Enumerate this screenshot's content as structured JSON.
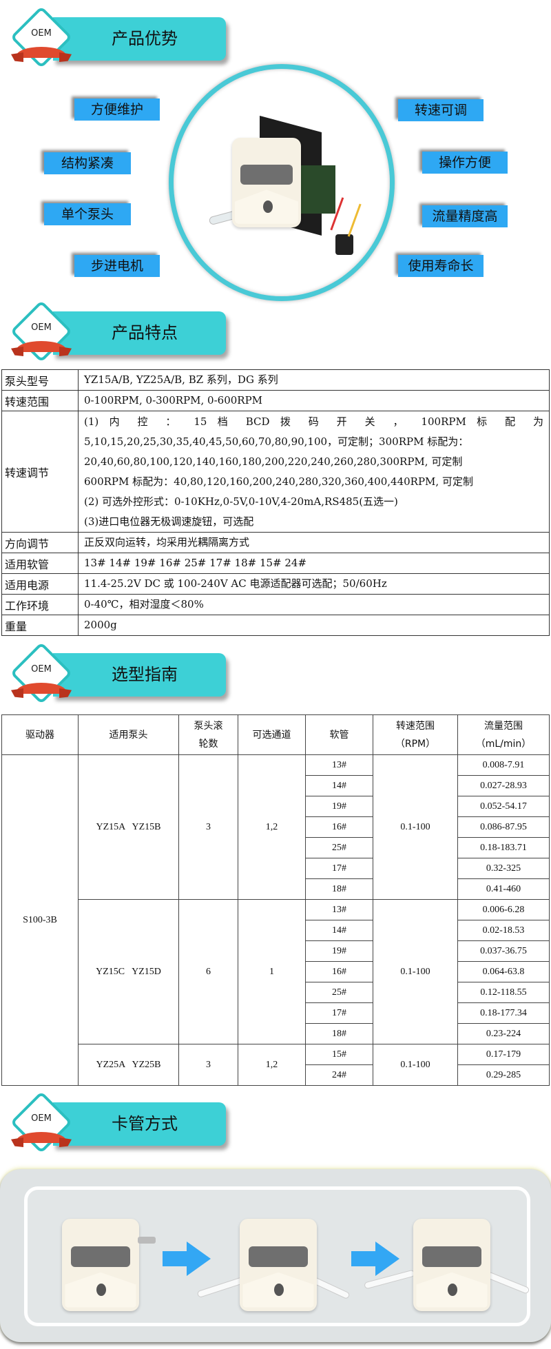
{
  "badge_text": "OEM",
  "sections": {
    "advantages": {
      "title": "产品优势"
    },
    "features": {
      "title": "产品特点"
    },
    "selection": {
      "title": "选型指南"
    },
    "tube_loading": {
      "title": "卡管方式"
    }
  },
  "advantages": {
    "left": [
      "方便维护",
      "结构紧凑",
      "单个泵头",
      "步进电机"
    ],
    "right": [
      "转速可调",
      "操作方便",
      "流量精度高",
      "使用寿命长"
    ]
  },
  "spec_table": [
    {
      "label": "泵头型号",
      "value": [
        "YZ15A/B, YZ25A/B, BZ 系列，DG 系列"
      ]
    },
    {
      "label": "转速范围",
      "value": [
        "0-100RPM, 0-300RPM, 0-600RPM"
      ]
    },
    {
      "label": "转速调节",
      "value": [
        "(1) 内 控 ： 15 档 BCD 拨 码 开 关 ， 100RPM 标 配 为",
        "5,10,15,20,25,30,35,40,45,50,60,70,80,90,100，可定制；300RPM 标配为：",
        "20,40,60,80,100,120,140,160,180,200,220,240,260,280,300RPM, 可定制",
        "600RPM 标配为：40,80,120,160,200,240,280,320,360,400,440RPM, 可定制",
        "(2) 可选外控形式：0-10KHz,0-5V,0-10V,4-20mA,RS485(五选一)",
        "(3)进口电位器无极调速旋钮，可选配"
      ]
    },
    {
      "label": "方向调节",
      "value": [
        "正反双向运转，均采用光耦隔离方式"
      ]
    },
    {
      "label": "适用软管",
      "value": [
        "13# 14# 19# 16# 25# 17# 18# 15# 24#"
      ]
    },
    {
      "label": "适用电源",
      "value": [
        "11.4-25.2V DC 或 100-240V AC 电源适配器可选配；50/60Hz"
      ]
    },
    {
      "label": "工作环境",
      "value": [
        "0-40℃，相对湿度＜80%"
      ]
    },
    {
      "label": "重量",
      "value": [
        "2000g"
      ]
    }
  ],
  "selection_table": {
    "headers": [
      "驱动器",
      "适用泵头",
      "泵头滚\n轮数",
      "可选通道",
      "软管",
      "转速范围\n（RPM）",
      "流量范围\n（mL/min）"
    ],
    "driver": "S100-3B",
    "groups": [
      {
        "heads": "YZ15A   YZ15B",
        "rollers": "3",
        "channels": "1,2",
        "speed": "0.1-100",
        "rows": [
          [
            "13#",
            "0.008-7.91"
          ],
          [
            "14#",
            "0.027-28.93"
          ],
          [
            "19#",
            "0.052-54.17"
          ],
          [
            "16#",
            "0.086-87.95"
          ],
          [
            "25#",
            "0.18-183.71"
          ],
          [
            "17#",
            "0.32-325"
          ],
          [
            "18#",
            "0.41-460"
          ]
        ]
      },
      {
        "heads": "YZ15C   YZ15D",
        "rollers": "6",
        "channels": "1",
        "speed": "0.1-100",
        "rows": [
          [
            "13#",
            "0.006-6.28"
          ],
          [
            "14#",
            "0.02-18.53"
          ],
          [
            "19#",
            "0.037-36.75"
          ],
          [
            "16#",
            "0.064-63.8"
          ],
          [
            "25#",
            "0.12-118.55"
          ],
          [
            "17#",
            "0.18-177.34"
          ],
          [
            "18#",
            "0.23-224"
          ]
        ]
      },
      {
        "heads": "YZ25A   YZ25B",
        "rollers": "3",
        "channels": "1,2",
        "speed": "0.1-100",
        "rows": [
          [
            "15#",
            "0.17-179"
          ],
          [
            "24#",
            "0.29-285"
          ]
        ]
      }
    ]
  },
  "colors": {
    "header_teal": "#3dd0d6",
    "feature_blue": "#2ea8f3",
    "ribbon_red": "#e04a2e",
    "arrow_blue": "#33a7f4"
  }
}
